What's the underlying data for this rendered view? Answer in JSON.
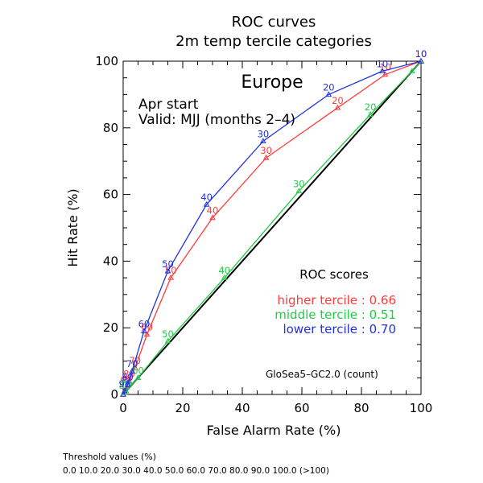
{
  "chart_data": {
    "type": "line",
    "title": "ROC curves",
    "subtitle": "2m temp tercile categories",
    "region": "Europe",
    "start_label": "Apr start",
    "valid_label": "Valid: MJJ (months 2–4)",
    "xlabel": "False Alarm Rate (%)",
    "ylabel": "Hit Rate (%)",
    "xlim": [
      0,
      100
    ],
    "ylim": [
      0,
      100
    ],
    "x_ticks": [
      "0",
      "20",
      "40",
      "60",
      "80",
      "100"
    ],
    "y_ticks": [
      "0",
      "20",
      "40",
      "60",
      "80",
      "100"
    ],
    "grid": false,
    "diagonal_reference": true,
    "scores_title": "ROC scores",
    "model_label": "GloSea5–GC2.0 (count)",
    "threshold_title": "Threshold values (%)",
    "threshold_values": "0.0 10.0 20.0 30.0 40.0 50.0 60.0 70.0 80.0 90.0 100.0 (>100)",
    "series": [
      {
        "name": "higher tercile",
        "score": "0.66",
        "color": "#ff3b3b",
        "x": [
          100,
          88,
          72,
          48,
          30,
          16,
          8,
          4,
          2,
          1,
          0.5,
          0
        ],
        "y": [
          100,
          96,
          86,
          71,
          53,
          35,
          18,
          8,
          4,
          2,
          1,
          0
        ],
        "labels": [
          "10",
          "10",
          "20",
          "30",
          "40",
          "50",
          "60",
          "70",
          "80",
          "90",
          "",
          ""
        ]
      },
      {
        "name": "middle tercile",
        "score": "0.51",
        "color": "#22cc44",
        "x": [
          100,
          97,
          83,
          59,
          34,
          15,
          5,
          1,
          0.5,
          0
        ],
        "y": [
          100,
          97,
          84,
          61,
          35,
          16,
          5,
          1,
          0.5,
          0
        ],
        "labels": [
          "",
          "",
          "20",
          "30",
          "40",
          "50",
          "60",
          "70",
          "80",
          ""
        ]
      },
      {
        "name": "lower tercile",
        "score": "0.70",
        "color": "#2233dd",
        "x": [
          100,
          87,
          69,
          47,
          28,
          15,
          7,
          3,
          1.5,
          0.5,
          0
        ],
        "y": [
          100,
          97,
          90,
          76,
          57,
          37,
          19,
          7,
          3,
          1,
          0
        ],
        "labels": [
          "10",
          "10",
          "20",
          "30",
          "40",
          "50",
          "60",
          "70",
          "80",
          "90",
          ""
        ]
      }
    ]
  }
}
